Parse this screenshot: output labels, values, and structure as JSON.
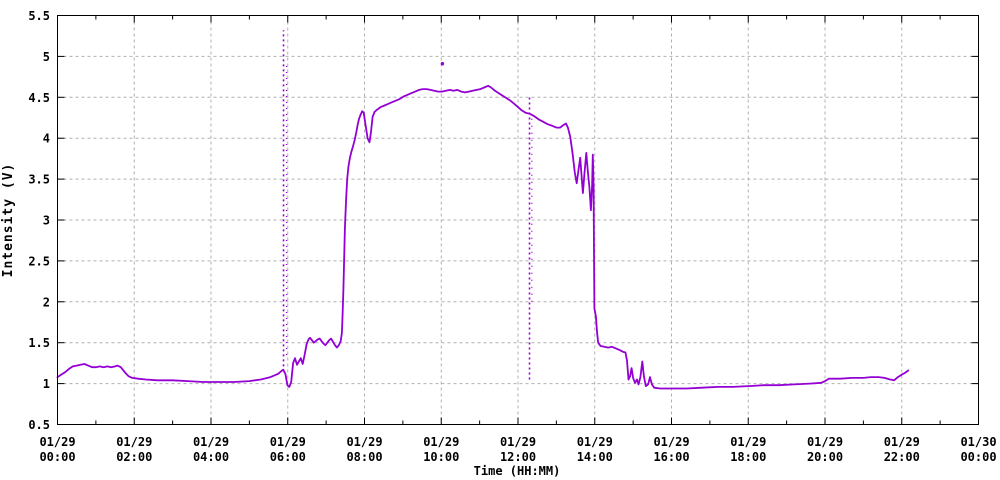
{
  "page": {
    "background": "#ffffff",
    "text_color": "#000000"
  },
  "chart_data": {
    "type": "line",
    "title": "",
    "xlabel": "Time (HH:MM)",
    "ylabel": "Intensity (V)",
    "xlim_hours": [
      0,
      24
    ],
    "ylim": [
      0.5,
      5.5
    ],
    "grid": {
      "show": true,
      "style": "dotted",
      "color": "#b0b0b0"
    },
    "legend": {
      "show": false
    },
    "axis_color": "#000000",
    "x_major_ticks": [
      {
        "hours": 0,
        "date": "01/29",
        "time": "00:00"
      },
      {
        "hours": 2,
        "date": "01/29",
        "time": "02:00"
      },
      {
        "hours": 4,
        "date": "01/29",
        "time": "04:00"
      },
      {
        "hours": 6,
        "date": "01/29",
        "time": "06:00"
      },
      {
        "hours": 8,
        "date": "01/29",
        "time": "08:00"
      },
      {
        "hours": 10,
        "date": "01/29",
        "time": "10:00"
      },
      {
        "hours": 12,
        "date": "01/29",
        "time": "12:00"
      },
      {
        "hours": 14,
        "date": "01/29",
        "time": "14:00"
      },
      {
        "hours": 16,
        "date": "01/29",
        "time": "16:00"
      },
      {
        "hours": 18,
        "date": "01/29",
        "time": "18:00"
      },
      {
        "hours": 20,
        "date": "01/29",
        "time": "20:00"
      },
      {
        "hours": 22,
        "date": "01/29",
        "time": "22:00"
      },
      {
        "hours": 24,
        "date": "01/30",
        "time": "00:00"
      }
    ],
    "x_minor_tick_hours": [
      1,
      3,
      5,
      7,
      9,
      11,
      13,
      15,
      17,
      19,
      21,
      23
    ],
    "y_ticks": [
      {
        "value": 0.5,
        "label": "0.5"
      },
      {
        "value": 1.0,
        "label": "1"
      },
      {
        "value": 1.5,
        "label": "1.5"
      },
      {
        "value": 2.0,
        "label": "2"
      },
      {
        "value": 2.5,
        "label": "2.5"
      },
      {
        "value": 3.0,
        "label": "3"
      },
      {
        "value": 3.5,
        "label": "3.5"
      },
      {
        "value": 4.0,
        "label": "4"
      },
      {
        "value": 4.5,
        "label": "4.5"
      },
      {
        "value": 5.0,
        "label": "5"
      },
      {
        "value": 5.5,
        "label": "5.5"
      }
    ],
    "series": [
      {
        "name": "intensity",
        "color": "#9400d3",
        "style": "points",
        "points": [
          [
            0.0,
            1.08
          ],
          [
            0.1,
            1.11
          ],
          [
            0.2,
            1.14
          ],
          [
            0.3,
            1.18
          ],
          [
            0.4,
            1.21
          ],
          [
            0.5,
            1.22
          ],
          [
            0.6,
            1.23
          ],
          [
            0.7,
            1.24
          ],
          [
            0.8,
            1.22
          ],
          [
            0.9,
            1.2
          ],
          [
            1.0,
            1.2
          ],
          [
            1.1,
            1.21
          ],
          [
            1.2,
            1.2
          ],
          [
            1.3,
            1.21
          ],
          [
            1.4,
            1.2
          ],
          [
            1.5,
            1.21
          ],
          [
            1.56,
            1.22
          ],
          [
            1.65,
            1.2
          ],
          [
            1.75,
            1.14
          ],
          [
            1.85,
            1.09
          ],
          [
            1.95,
            1.07
          ],
          [
            2.1,
            1.06
          ],
          [
            2.3,
            1.05
          ],
          [
            2.6,
            1.04
          ],
          [
            3.0,
            1.04
          ],
          [
            3.4,
            1.03
          ],
          [
            3.8,
            1.02
          ],
          [
            4.2,
            1.02
          ],
          [
            4.6,
            1.02
          ],
          [
            5.0,
            1.03
          ],
          [
            5.3,
            1.05
          ],
          [
            5.55,
            1.08
          ],
          [
            5.75,
            1.12
          ],
          [
            5.85,
            1.16
          ],
          [
            5.88,
            1.17
          ],
          [
            5.94,
            1.12
          ],
          [
            5.99,
            0.98
          ],
          [
            6.04,
            0.96
          ],
          [
            6.09,
            1.02
          ],
          [
            6.14,
            1.25
          ],
          [
            6.19,
            1.31
          ],
          [
            6.24,
            1.23
          ],
          [
            6.29,
            1.27
          ],
          [
            6.34,
            1.31
          ],
          [
            6.39,
            1.24
          ],
          [
            6.44,
            1.35
          ],
          [
            6.49,
            1.48
          ],
          [
            6.54,
            1.54
          ],
          [
            6.58,
            1.56
          ],
          [
            6.63,
            1.53
          ],
          [
            6.68,
            1.5
          ],
          [
            6.73,
            1.52
          ],
          [
            6.78,
            1.54
          ],
          [
            6.83,
            1.55
          ],
          [
            6.88,
            1.52
          ],
          [
            6.93,
            1.49
          ],
          [
            6.98,
            1.47
          ],
          [
            7.03,
            1.5
          ],
          [
            7.08,
            1.53
          ],
          [
            7.13,
            1.55
          ],
          [
            7.18,
            1.51
          ],
          [
            7.23,
            1.47
          ],
          [
            7.28,
            1.44
          ],
          [
            7.33,
            1.47
          ],
          [
            7.38,
            1.52
          ],
          [
            7.41,
            1.62
          ],
          [
            7.43,
            1.85
          ],
          [
            7.45,
            2.15
          ],
          [
            7.47,
            2.55
          ],
          [
            7.49,
            2.9
          ],
          [
            7.52,
            3.25
          ],
          [
            7.55,
            3.5
          ],
          [
            7.58,
            3.65
          ],
          [
            7.62,
            3.76
          ],
          [
            7.66,
            3.84
          ],
          [
            7.7,
            3.9
          ],
          [
            7.74,
            3.97
          ],
          [
            7.78,
            4.06
          ],
          [
            7.82,
            4.16
          ],
          [
            7.86,
            4.24
          ],
          [
            7.9,
            4.29
          ],
          [
            7.94,
            4.33
          ],
          [
            7.98,
            4.31
          ],
          [
            8.03,
            4.15
          ],
          [
            8.08,
            4.0
          ],
          [
            8.13,
            3.95
          ],
          [
            8.17,
            4.08
          ],
          [
            8.21,
            4.26
          ],
          [
            8.26,
            4.32
          ],
          [
            8.33,
            4.35
          ],
          [
            8.42,
            4.38
          ],
          [
            8.52,
            4.4
          ],
          [
            8.62,
            4.42
          ],
          [
            8.72,
            4.44
          ],
          [
            8.82,
            4.46
          ],
          [
            8.92,
            4.48
          ],
          [
            9.02,
            4.51
          ],
          [
            9.12,
            4.53
          ],
          [
            9.22,
            4.55
          ],
          [
            9.32,
            4.57
          ],
          [
            9.42,
            4.59
          ],
          [
            9.52,
            4.6
          ],
          [
            9.62,
            4.6
          ],
          [
            9.72,
            4.59
          ],
          [
            9.82,
            4.58
          ],
          [
            9.92,
            4.57
          ],
          [
            10.02,
            4.57
          ],
          [
            10.12,
            4.58
          ],
          [
            10.22,
            4.59
          ],
          [
            10.32,
            4.58
          ],
          [
            10.42,
            4.59
          ],
          [
            10.52,
            4.57
          ],
          [
            10.62,
            4.56
          ],
          [
            10.72,
            4.57
          ],
          [
            10.82,
            4.58
          ],
          [
            10.92,
            4.59
          ],
          [
            11.02,
            4.6
          ],
          [
            11.12,
            4.62
          ],
          [
            11.22,
            4.64
          ],
          [
            11.3,
            4.62
          ],
          [
            11.4,
            4.58
          ],
          [
            11.5,
            4.55
          ],
          [
            11.6,
            4.52
          ],
          [
            11.7,
            4.49
          ],
          [
            11.8,
            4.46
          ],
          [
            11.9,
            4.42
          ],
          [
            12.0,
            4.38
          ],
          [
            12.1,
            4.34
          ],
          [
            12.2,
            4.31
          ],
          [
            12.3,
            4.3
          ],
          [
            12.42,
            4.27
          ],
          [
            12.54,
            4.23
          ],
          [
            12.66,
            4.2
          ],
          [
            12.78,
            4.17
          ],
          [
            12.9,
            4.15
          ],
          [
            13.0,
            4.13
          ],
          [
            13.1,
            4.13
          ],
          [
            13.18,
            4.16
          ],
          [
            13.25,
            4.18
          ],
          [
            13.3,
            4.13
          ],
          [
            13.36,
            4.02
          ],
          [
            13.42,
            3.82
          ],
          [
            13.48,
            3.58
          ],
          [
            13.53,
            3.45
          ],
          [
            13.58,
            3.62
          ],
          [
            13.62,
            3.76
          ],
          [
            13.66,
            3.52
          ],
          [
            13.69,
            3.33
          ],
          [
            13.73,
            3.56
          ],
          [
            13.78,
            3.82
          ],
          [
            13.82,
            3.6
          ],
          [
            13.86,
            3.4
          ],
          [
            13.9,
            3.12
          ],
          [
            13.93,
            3.42
          ],
          [
            13.95,
            3.8
          ],
          [
            13.97,
            3.4
          ],
          [
            13.98,
            2.6
          ],
          [
            13.99,
            1.92
          ],
          [
            14.03,
            1.82
          ],
          [
            14.06,
            1.62
          ],
          [
            14.09,
            1.5
          ],
          [
            14.15,
            1.46
          ],
          [
            14.25,
            1.45
          ],
          [
            14.35,
            1.44
          ],
          [
            14.45,
            1.45
          ],
          [
            14.55,
            1.43
          ],
          [
            14.65,
            1.41
          ],
          [
            14.73,
            1.39
          ],
          [
            14.8,
            1.38
          ],
          [
            14.84,
            1.28
          ],
          [
            14.88,
            1.05
          ],
          [
            14.92,
            1.09
          ],
          [
            14.96,
            1.19
          ],
          [
            15.0,
            1.07
          ],
          [
            15.05,
            1.01
          ],
          [
            15.1,
            1.05
          ],
          [
            15.14,
            0.99
          ],
          [
            15.19,
            1.08
          ],
          [
            15.24,
            1.27
          ],
          [
            15.28,
            1.09
          ],
          [
            15.33,
            0.97
          ],
          [
            15.39,
            0.99
          ],
          [
            15.44,
            1.08
          ],
          [
            15.49,
            0.99
          ],
          [
            15.55,
            0.95
          ],
          [
            15.7,
            0.94
          ],
          [
            16.0,
            0.94
          ],
          [
            16.4,
            0.94
          ],
          [
            16.8,
            0.95
          ],
          [
            17.2,
            0.96
          ],
          [
            17.6,
            0.96
          ],
          [
            18.0,
            0.97
          ],
          [
            18.4,
            0.98
          ],
          [
            18.8,
            0.98
          ],
          [
            19.2,
            0.99
          ],
          [
            19.6,
            1.0
          ],
          [
            19.9,
            1.01
          ],
          [
            20.0,
            1.03
          ],
          [
            20.1,
            1.06
          ],
          [
            20.4,
            1.06
          ],
          [
            20.7,
            1.07
          ],
          [
            21.0,
            1.07
          ],
          [
            21.2,
            1.08
          ],
          [
            21.4,
            1.08
          ],
          [
            21.55,
            1.07
          ],
          [
            21.7,
            1.05
          ],
          [
            21.8,
            1.04
          ],
          [
            21.9,
            1.08
          ],
          [
            22.0,
            1.11
          ],
          [
            22.08,
            1.13
          ],
          [
            22.17,
            1.16
          ]
        ]
      }
    ],
    "noise_spikes": [
      {
        "hours": 5.89,
        "v_from": 1.15,
        "v_to": 5.32,
        "dash": "2,3",
        "width": 1.6
      },
      {
        "hours": 5.97,
        "v_from": 1.35,
        "v_to": 4.9,
        "dash": "1,5",
        "width": 1.3
      },
      {
        "hours": 12.3,
        "v_from": 1.05,
        "v_to": 4.52,
        "dash": "2,3",
        "width": 1.6
      },
      {
        "hours": 12.36,
        "v_from": 2.0,
        "v_to": 4.3,
        "dash": "1,6",
        "width": 1.3
      }
    ],
    "outlier_points": [
      [
        10.03,
        4.91
      ]
    ]
  }
}
